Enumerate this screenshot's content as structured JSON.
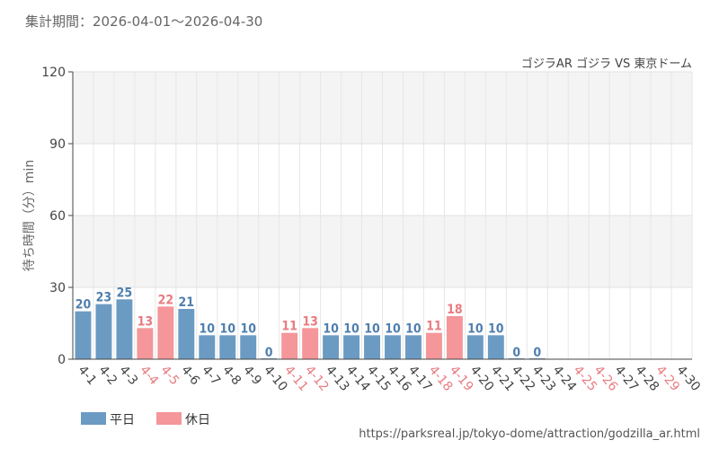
{
  "period_label": "集計期間：2026-04-01～2026-04-30",
  "source_url": "https://parksreal.jp/tokyo-dome/attraction/godzilla_ar.html",
  "colors": {
    "weekday": "#6b9bc3",
    "holiday": "#f4969a",
    "weekday_text": "#4f7fae",
    "holiday_text": "#e97b80"
  },
  "chart_data": {
    "type": "bar",
    "subtitle": "ゴジラAR ゴジラ VS 東京ドーム",
    "ylabel": "待ち時間（分）min",
    "ylim": [
      0,
      120
    ],
    "yticks": [
      0,
      30,
      60,
      90,
      120
    ],
    "grid": true,
    "legend_position": "bottom-left",
    "legend": [
      {
        "key": "weekday",
        "label": "平日"
      },
      {
        "key": "holiday",
        "label": "休日"
      }
    ],
    "categories": [
      "4-1",
      "4-2",
      "4-3",
      "4-4",
      "4-5",
      "4-6",
      "4-7",
      "4-8",
      "4-9",
      "4-10",
      "4-11",
      "4-12",
      "4-13",
      "4-14",
      "4-15",
      "4-16",
      "4-17",
      "4-18",
      "4-19",
      "4-20",
      "4-21",
      "4-22",
      "4-23",
      "4-24",
      "4-25",
      "4-26",
      "4-27",
      "4-28",
      "4-29",
      "4-30"
    ],
    "values": [
      20,
      23,
      25,
      13,
      22,
      21,
      10,
      10,
      10,
      0,
      11,
      13,
      10,
      10,
      10,
      10,
      10,
      11,
      18,
      10,
      10,
      0,
      0,
      null,
      null,
      null,
      null,
      null,
      null,
      null
    ],
    "day_type": [
      "weekday",
      "weekday",
      "weekday",
      "holiday",
      "holiday",
      "weekday",
      "weekday",
      "weekday",
      "weekday",
      "weekday",
      "holiday",
      "holiday",
      "weekday",
      "weekday",
      "weekday",
      "weekday",
      "weekday",
      "holiday",
      "holiday",
      "weekday",
      "weekday",
      "weekday",
      "weekday",
      "weekday",
      "holiday",
      "holiday",
      "weekday",
      "weekday",
      "holiday",
      "weekday"
    ]
  }
}
